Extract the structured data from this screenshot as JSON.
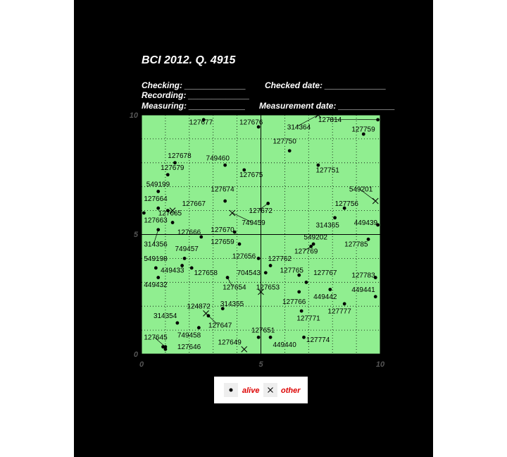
{
  "header": {
    "title": "BCI 2012. Q. 4915",
    "line1a": "Checking: _____________",
    "line1b": "Checked date: _____________",
    "line2": "Recording: _____________",
    "line3a": "Measuring: ____________",
    "line3b": "Measurement date: ____________"
  },
  "colors": {
    "plot_bg": "#90ee90",
    "page_bg": "#000000",
    "legend_text": "#dd0000"
  },
  "legend": {
    "alive": "alive",
    "other": "other"
  },
  "chart_data": {
    "type": "scatter",
    "xlim": [
      0,
      10
    ],
    "ylim": [
      0,
      10
    ],
    "xticks": [
      "0",
      "5",
      "10"
    ],
    "yticks": [
      "0",
      "5",
      "10"
    ],
    "grid": true,
    "legend_position": "bottom",
    "points": [
      {
        "id": "127677",
        "x": 2.6,
        "y": 9.8,
        "s": "alive",
        "lx": 2.0,
        "ly": 9.6
      },
      {
        "id": "127676",
        "x": 4.9,
        "y": 9.5,
        "s": "alive",
        "lx": 4.1,
        "ly": 9.6
      },
      {
        "id": "314364",
        "x": 7.4,
        "y": 10.0,
        "s": "other",
        "lx": 6.1,
        "ly": 9.4,
        "ld": true
      },
      {
        "id": "127814",
        "x": 9.9,
        "y": 9.8,
        "s": "alive",
        "lx": 7.4,
        "ly": 9.7,
        "ld": true
      },
      {
        "id": "127759",
        "x": 9.3,
        "y": 9.2,
        "s": "alive",
        "lx": 8.8,
        "ly": 9.3
      },
      {
        "id": "127750",
        "x": 6.2,
        "y": 8.5,
        "s": "alive",
        "lx": 5.5,
        "ly": 8.8
      },
      {
        "id": "127678",
        "x": 1.4,
        "y": 8.0,
        "s": "alive",
        "lx": 1.1,
        "ly": 8.2
      },
      {
        "id": "749460",
        "x": 3.5,
        "y": 7.9,
        "s": "alive",
        "lx": 2.7,
        "ly": 8.1
      },
      {
        "id": "127751",
        "x": 7.4,
        "y": 7.9,
        "s": "alive",
        "lx": 7.3,
        "ly": 7.6
      },
      {
        "id": "127679",
        "x": 1.1,
        "y": 7.5,
        "s": "alive",
        "lx": 0.8,
        "ly": 7.7
      },
      {
        "id": "127675",
        "x": 4.3,
        "y": 7.7,
        "s": "alive",
        "lx": 4.1,
        "ly": 7.4
      },
      {
        "id": "549199",
        "x": 0.7,
        "y": 6.8,
        "s": "alive",
        "lx": 0.2,
        "ly": 7.0
      },
      {
        "id": "127674",
        "x": 3.5,
        "y": 6.4,
        "s": "alive",
        "lx": 2.9,
        "ly": 6.8
      },
      {
        "id": "549201",
        "x": 9.8,
        "y": 6.4,
        "s": "other",
        "lx": 8.7,
        "ly": 6.8,
        "ld": true
      },
      {
        "id": "127664",
        "x": 0.7,
        "y": 6.1,
        "s": "alive",
        "lx": 0.1,
        "ly": 6.4
      },
      {
        "id": "127667",
        "x": 1.1,
        "y": 6.0,
        "s": "alive",
        "lx": 1.7,
        "ly": 6.2
      },
      {
        "id": "127756",
        "x": 8.5,
        "y": 6.1,
        "s": "alive",
        "lx": 8.1,
        "ly": 6.2
      },
      {
        "id": "127665",
        "x": 1.3,
        "y": 6.0,
        "s": "other",
        "lx": 0.7,
        "ly": 5.8
      },
      {
        "id": "127672",
        "x": 5.3,
        "y": 6.3,
        "s": "alive",
        "lx": 4.5,
        "ly": 5.9,
        "ld": true
      },
      {
        "id": "749459",
        "x": 3.8,
        "y": 5.9,
        "s": "other",
        "lx": 4.2,
        "ly": 5.4,
        "ld": true
      },
      {
        "id": "127663",
        "x": 1.3,
        "y": 5.5,
        "s": "alive",
        "lx": 0.1,
        "ly": 5.5
      },
      {
        "id": "314365",
        "x": 8.1,
        "y": 5.7,
        "s": "alive",
        "lx": 7.3,
        "ly": 5.3
      },
      {
        "id": "449439",
        "x": 9.9,
        "y": 5.4,
        "s": "alive",
        "lx": 8.9,
        "ly": 5.4
      },
      {
        "id": "127670",
        "x": 3.9,
        "y": 5.1,
        "s": "alive",
        "lx": 2.9,
        "ly": 5.1
      },
      {
        "id": "127666",
        "x": 2.5,
        "y": 4.9,
        "s": "alive",
        "lx": 1.5,
        "ly": 5.0
      },
      {
        "id": "549202",
        "x": 7.2,
        "y": 4.6,
        "s": "alive",
        "lx": 6.8,
        "ly": 4.8
      },
      {
        "id": "127659",
        "x": 4.1,
        "y": 4.6,
        "s": "alive",
        "lx": 2.9,
        "ly": 4.6
      },
      {
        "id": "127785",
        "x": 9.5,
        "y": 4.8,
        "s": "alive",
        "lx": 8.5,
        "ly": 4.5
      },
      {
        "id": "314356",
        "x": 0.7,
        "y": 5.2,
        "s": "alive",
        "lx": 0.1,
        "ly": 4.5,
        "ld": true
      },
      {
        "id": "127769",
        "x": 7.1,
        "y": 4.5,
        "s": "alive",
        "lx": 6.4,
        "ly": 4.2,
        "ld": true
      },
      {
        "id": "749457",
        "x": 1.8,
        "y": 4.0,
        "s": "alive",
        "lx": 1.4,
        "ly": 4.3
      },
      {
        "id": "127656",
        "x": 4.9,
        "y": 4.0,
        "s": "alive",
        "lx": 3.8,
        "ly": 4.0
      },
      {
        "id": "127762",
        "x": 5.4,
        "y": 3.7,
        "s": "alive",
        "lx": 5.3,
        "ly": 3.9
      },
      {
        "id": "549198",
        "x": 0.6,
        "y": 3.6,
        "s": "alive",
        "lx": 0.1,
        "ly": 3.9
      },
      {
        "id": "449433",
        "x": 1.7,
        "y": 3.7,
        "s": "alive",
        "lx": 0.8,
        "ly": 3.4
      },
      {
        "id": "127658",
        "x": 2.1,
        "y": 3.6,
        "s": "alive",
        "lx": 2.2,
        "ly": 3.3
      },
      {
        "id": "704543",
        "x": 5.2,
        "y": 3.4,
        "s": "alive",
        "lx": 4.0,
        "ly": 3.3
      },
      {
        "id": "127765",
        "x": 6.6,
        "y": 3.3,
        "s": "alive",
        "lx": 5.8,
        "ly": 3.4
      },
      {
        "id": "127767",
        "x": 6.9,
        "y": 3.0,
        "s": "alive",
        "lx": 7.2,
        "ly": 3.3
      },
      {
        "id": "127783",
        "x": 9.8,
        "y": 3.2,
        "s": "alive",
        "lx": 8.8,
        "ly": 3.2
      },
      {
        "id": "449432",
        "x": 0.7,
        "y": 3.2,
        "s": "alive",
        "lx": 0.1,
        "ly": 2.8
      },
      {
        "id": "127654",
        "x": 3.6,
        "y": 3.2,
        "s": "alive",
        "lx": 3.4,
        "ly": 2.7,
        "ld": true
      },
      {
        "id": "127653",
        "x": 5.0,
        "y": 2.6,
        "s": "other",
        "lx": 4.8,
        "ly": 2.7
      },
      {
        "id": "449441",
        "x": 9.8,
        "y": 2.4,
        "s": "alive",
        "lx": 8.8,
        "ly": 2.6
      },
      {
        "id": "449442",
        "x": 7.9,
        "y": 2.7,
        "s": "alive",
        "lx": 7.2,
        "ly": 2.3
      },
      {
        "id": "127766",
        "x": 6.6,
        "y": 2.6,
        "s": "alive",
        "lx": 5.9,
        "ly": 2.1
      },
      {
        "id": "124872",
        "x": 2.7,
        "y": 1.7,
        "s": "other",
        "lx": 1.9,
        "ly": 1.9
      },
      {
        "id": "314355",
        "x": 3.4,
        "y": 1.9,
        "s": "alive",
        "lx": 3.3,
        "ly": 2.0
      },
      {
        "id": "127777",
        "x": 8.5,
        "y": 2.1,
        "s": "alive",
        "lx": 7.8,
        "ly": 1.7
      },
      {
        "id": "127771",
        "x": 6.7,
        "y": 1.8,
        "s": "alive",
        "lx": 6.5,
        "ly": 1.4
      },
      {
        "id": "314354",
        "x": 1.5,
        "y": 1.3,
        "s": "alive",
        "lx": 0.5,
        "ly": 1.5
      },
      {
        "id": "127647",
        "x": 2.8,
        "y": 1.6,
        "s": "alive",
        "lx": 2.8,
        "ly": 1.1,
        "ld": true
      },
      {
        "id": "749458",
        "x": 2.4,
        "y": 1.1,
        "s": "alive",
        "lx": 1.5,
        "ly": 0.7
      },
      {
        "id": "127651",
        "x": 4.9,
        "y": 0.7,
        "s": "alive",
        "lx": 4.6,
        "ly": 0.9
      },
      {
        "id": "127645",
        "x": 1.0,
        "y": 0.3,
        "s": "alive",
        "lx": 0.1,
        "ly": 0.6,
        "ld": true
      },
      {
        "id": "127774",
        "x": 6.8,
        "y": 0.7,
        "s": "alive",
        "lx": 6.9,
        "ly": 0.5
      },
      {
        "id": "449440",
        "x": 5.4,
        "y": 0.7,
        "s": "alive",
        "lx": 5.5,
        "ly": 0.3
      },
      {
        "id": "127649",
        "x": 4.3,
        "y": 0.2,
        "s": "other",
        "lx": 3.2,
        "ly": 0.4
      },
      {
        "id": "127646",
        "x": 1.0,
        "y": 0.2,
        "s": "alive",
        "lx": 1.5,
        "ly": 0.2
      },
      {
        "x": 0.1,
        "y": 5.9,
        "s": "alive"
      },
      {
        "x": 0.9,
        "y": 0.3,
        "s": "alive"
      }
    ]
  }
}
